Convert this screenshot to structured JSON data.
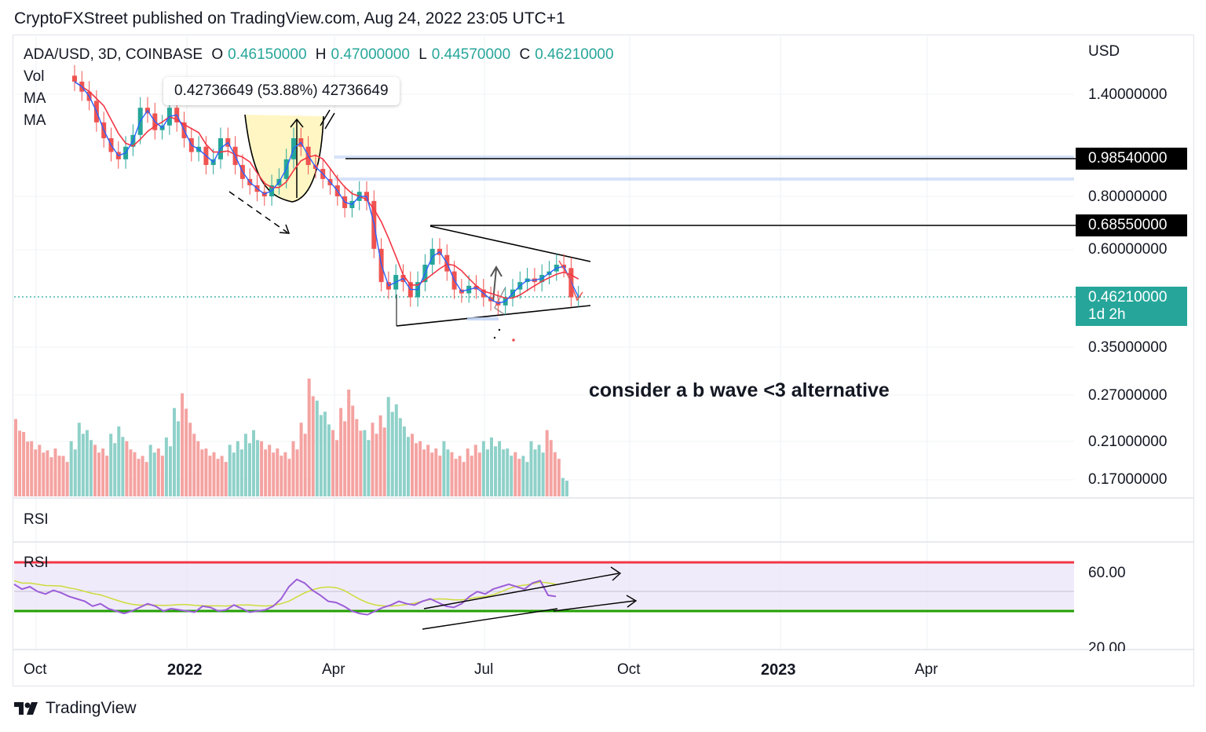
{
  "header": {
    "text": "CryptoFXStreet published on TradingView.com, Aug 24, 2022 23:05 UTC+1"
  },
  "legend": {
    "symbol": "ADA/USD, 3D, COINBASE",
    "open_label": "O",
    "open": "0.46150000",
    "high_label": "H",
    "high": "0.47000000",
    "low_label": "L",
    "low": "0.44570000",
    "close_label": "C",
    "close": "0.46210000"
  },
  "indicators": {
    "vol": "Vol",
    "ma1": "MA",
    "ma2": "MA",
    "rsi_pane": "RSI",
    "rsi_label": "RSI"
  },
  "tooltip": {
    "text": "0.42736649 (53.88%) 42736649"
  },
  "annotation": {
    "text": "consider a b wave <3 alternative"
  },
  "price_axis": {
    "currency": "USD",
    "ticks": [
      "1.40000000",
      "0.80000000",
      "0.60000000",
      "0.35000000",
      "0.27000000",
      "0.21000000",
      "0.17000000"
    ],
    "level_1": "0.98540000",
    "level_2": "0.68550000",
    "last_price": "0.46210000",
    "countdown": "1d 2h"
  },
  "rsi_axis": {
    "ticks": [
      "60.00",
      "20.00"
    ]
  },
  "time_axis": {
    "labels": [
      "Oct",
      "2022",
      "Apr",
      "Jul",
      "Oct",
      "2023",
      "Apr"
    ]
  },
  "footer": {
    "brand": "TradingView"
  },
  "colors": {
    "up": "#26a69a",
    "down": "#ef5350",
    "ma_fast": "#2962ff",
    "ma_slow": "#f23645",
    "rsi": "#9c5ed8",
    "rsi_ma": "#cddc39"
  },
  "chart_data": {
    "type": "candlestick",
    "symbol": "ADA/USD",
    "interval": "3D",
    "x_range": [
      "2021-09",
      "2023-06"
    ],
    "y_range": [
      0.17,
      1.6
    ],
    "y_scale": "log",
    "candles": [
      [
        1.55,
        1.5
      ],
      [
        1.5,
        1.42
      ],
      [
        1.42,
        1.35
      ],
      [
        1.35,
        1.2
      ],
      [
        1.2,
        1.1
      ],
      [
        1.1,
        1.02
      ],
      [
        1.02,
        0.98
      ],
      [
        0.98,
        1.05
      ],
      [
        1.05,
        1.12
      ],
      [
        1.12,
        1.3
      ],
      [
        1.3,
        1.26
      ],
      [
        1.26,
        1.15
      ],
      [
        1.15,
        1.18
      ],
      [
        1.18,
        1.3
      ],
      [
        1.3,
        1.2
      ],
      [
        1.2,
        1.1
      ],
      [
        1.1,
        1.02
      ],
      [
        1.02,
        1.05
      ],
      [
        1.05,
        0.95
      ],
      [
        0.95,
        0.98
      ],
      [
        0.98,
        1.1
      ],
      [
        1.1,
        1.05
      ],
      [
        1.05,
        0.95
      ],
      [
        0.95,
        0.88
      ],
      [
        0.88,
        0.85
      ],
      [
        0.85,
        0.82
      ],
      [
        0.82,
        0.8
      ],
      [
        0.8,
        0.85
      ],
      [
        0.85,
        0.88
      ],
      [
        0.88,
        0.98
      ],
      [
        0.98,
        1.1
      ],
      [
        1.1,
        1.05
      ],
      [
        1.05,
        0.95
      ],
      [
        0.95,
        0.93
      ],
      [
        0.93,
        0.88
      ],
      [
        0.88,
        0.85
      ],
      [
        0.85,
        0.8
      ],
      [
        0.8,
        0.75
      ],
      [
        0.75,
        0.78
      ],
      [
        0.78,
        0.82
      ],
      [
        0.82,
        0.78
      ],
      [
        0.78,
        0.6
      ],
      [
        0.6,
        0.5
      ],
      [
        0.5,
        0.48
      ],
      [
        0.48,
        0.52
      ],
      [
        0.52,
        0.5
      ],
      [
        0.5,
        0.46
      ],
      [
        0.46,
        0.5
      ],
      [
        0.5,
        0.55
      ],
      [
        0.55,
        0.6
      ],
      [
        0.6,
        0.58
      ],
      [
        0.58,
        0.53
      ],
      [
        0.53,
        0.48
      ],
      [
        0.48,
        0.47
      ],
      [
        0.47,
        0.49
      ],
      [
        0.49,
        0.48
      ],
      [
        0.48,
        0.46
      ],
      [
        0.46,
        0.45
      ],
      [
        0.45,
        0.44
      ],
      [
        0.44,
        0.46
      ],
      [
        0.46,
        0.48
      ],
      [
        0.48,
        0.5
      ],
      [
        0.5,
        0.51
      ],
      [
        0.51,
        0.5
      ],
      [
        0.5,
        0.52
      ],
      [
        0.52,
        0.53
      ],
      [
        0.53,
        0.55
      ],
      [
        0.55,
        0.54
      ],
      [
        0.54,
        0.46
      ],
      [
        0.46,
        0.462
      ]
    ],
    "volume": [
      42,
      35,
      30,
      28,
      25,
      26,
      22,
      30,
      40,
      36,
      28,
      26,
      34,
      38,
      30,
      24,
      22,
      28,
      26,
      32,
      48,
      56,
      40,
      30,
      26,
      24,
      22,
      28,
      30,
      34,
      36,
      30,
      28,
      26,
      24,
      30,
      40,
      64,
      52,
      46,
      36,
      48,
      58,
      42,
      36,
      40,
      44,
      54,
      50,
      38,
      34,
      30,
      28,
      26,
      30,
      24,
      22,
      26,
      28,
      30,
      32,
      30,
      26,
      24,
      22,
      30,
      28,
      36,
      24,
      10
    ],
    "rsi_range": [
      20,
      70
    ],
    "rsi_levels": [
      70,
      30
    ]
  }
}
